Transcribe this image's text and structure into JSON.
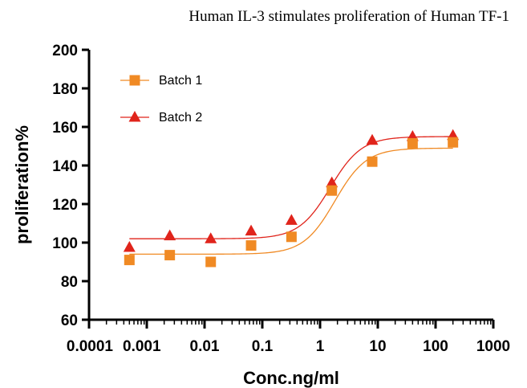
{
  "chart_data": {
    "type": "scatter",
    "title": "Human IL-3 stimulates proliferation of Human TF-1",
    "xlabel": "Conc.ng/ml",
    "ylabel": "proliferation%",
    "xscale": "log",
    "xlim": [
      0.0001,
      1000
    ],
    "ylim": [
      60,
      200
    ],
    "x_ticks": [
      0.0001,
      0.001,
      0.01,
      0.1,
      1,
      10,
      100,
      1000
    ],
    "x_tick_labels": [
      "0.0001",
      "0.001",
      "0.01",
      "0.1",
      "1",
      "10",
      "100",
      "1000"
    ],
    "y_ticks": [
      60,
      80,
      100,
      120,
      140,
      160,
      180,
      200
    ],
    "y_tick_labels": [
      "60",
      "80",
      "100",
      "120",
      "140",
      "160",
      "180",
      "200"
    ],
    "legend_position": "top-left",
    "series": [
      {
        "name": "Batch 1",
        "marker": "square",
        "color": "#F08A24",
        "x": [
          0.0005,
          0.0025,
          0.0128,
          0.064,
          0.32,
          1.6,
          8,
          40,
          200
        ],
        "values": [
          91,
          93.5,
          90,
          98.5,
          103,
          127,
          142,
          151.5,
          152
        ],
        "fit": {
          "bottom": 94,
          "top": 149,
          "ec50": 1.8,
          "hill": 1.6
        }
      },
      {
        "name": "Batch 2",
        "marker": "triangle",
        "color": "#E0241B",
        "x": [
          0.0005,
          0.0025,
          0.0128,
          0.064,
          0.32,
          1.6,
          8,
          40,
          200
        ],
        "values": [
          97.5,
          103.5,
          102,
          106,
          111.5,
          131,
          153,
          155,
          155.5
        ],
        "fit": {
          "bottom": 102,
          "top": 155,
          "ec50": 1.5,
          "hill": 1.6
        }
      }
    ]
  }
}
